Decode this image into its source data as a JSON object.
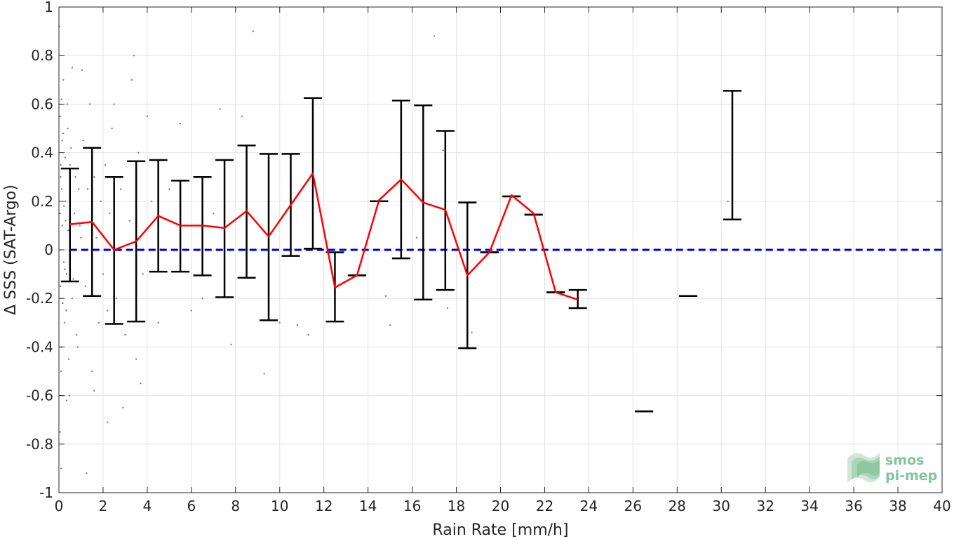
{
  "chart_data": {
    "type": "line",
    "xlabel": "Rain Rate [mm/h]",
    "ylabel": "Δ SSS (SAT-Argo)",
    "xlim": [
      0,
      40
    ],
    "ylim": [
      -1,
      1
    ],
    "xticks": [
      0,
      2,
      4,
      6,
      8,
      10,
      12,
      14,
      16,
      18,
      20,
      22,
      24,
      26,
      28,
      30,
      32,
      34,
      36,
      38,
      40
    ],
    "yticks": [
      -1,
      -0.8,
      -0.6,
      -0.4,
      -0.2,
      0,
      0.2,
      0.4,
      0.6,
      0.8,
      1
    ],
    "xtick_labels": [
      "0",
      "2",
      "4",
      "6",
      "8",
      "10",
      "12",
      "14",
      "16",
      "18",
      "20",
      "22",
      "24",
      "26",
      "28",
      "30",
      "32",
      "34",
      "36",
      "38",
      "40"
    ],
    "ytick_labels": [
      "-1",
      "-0.8",
      "-0.6",
      "-0.4",
      "-0.2",
      "0",
      "0.2",
      "0.4",
      "0.6",
      "0.8",
      "1"
    ],
    "grid": true,
    "reference_line": {
      "y": 0,
      "color": "#0000e0",
      "style": "dashed"
    },
    "mean_line": {
      "color": "#ff0000",
      "x": [
        0.5,
        1.5,
        2.5,
        3.5,
        4.5,
        5.5,
        6.5,
        7.5,
        8.5,
        9.5,
        10.5,
        11.5,
        12.5,
        13.5,
        14.5,
        15.5,
        16.5,
        17.5,
        18.5,
        19.5,
        20.5,
        21.5,
        22.5,
        23.5
      ],
      "y": [
        0.105,
        0.115,
        0.0,
        0.035,
        0.14,
        0.1,
        0.1,
        0.09,
        0.16,
        0.055,
        0.185,
        0.315,
        -0.155,
        -0.105,
        0.205,
        0.29,
        0.195,
        0.165,
        -0.105,
        -0.01,
        0.225,
        0.15,
        -0.175,
        -0.205
      ]
    },
    "error_bars": {
      "color": "#000000",
      "items": [
        {
          "x": 0.5,
          "low": -0.13,
          "high": 0.335
        },
        {
          "x": 1.5,
          "low": -0.19,
          "high": 0.42
        },
        {
          "x": 2.5,
          "low": -0.305,
          "high": 0.3
        },
        {
          "x": 3.5,
          "low": -0.295,
          "high": 0.365
        },
        {
          "x": 4.5,
          "low": -0.09,
          "high": 0.37
        },
        {
          "x": 5.5,
          "low": -0.09,
          "high": 0.285
        },
        {
          "x": 6.5,
          "low": -0.105,
          "high": 0.3
        },
        {
          "x": 7.5,
          "low": -0.195,
          "high": 0.37
        },
        {
          "x": 8.5,
          "low": -0.115,
          "high": 0.43
        },
        {
          "x": 9.5,
          "low": -0.29,
          "high": 0.395
        },
        {
          "x": 10.5,
          "low": -0.025,
          "high": 0.395
        },
        {
          "x": 11.5,
          "low": 0.005,
          "high": 0.625
        },
        {
          "x": 12.5,
          "low": -0.295,
          "high": -0.01
        },
        {
          "x": 13.5,
          "low": -0.105,
          "high": -0.105
        },
        {
          "x": 14.5,
          "low": 0.2,
          "high": 0.2
        },
        {
          "x": 15.5,
          "low": -0.035,
          "high": 0.615
        },
        {
          "x": 16.5,
          "low": -0.205,
          "high": 0.595
        },
        {
          "x": 17.5,
          "low": -0.165,
          "high": 0.49
        },
        {
          "x": 18.5,
          "low": -0.405,
          "high": 0.195
        },
        {
          "x": 19.5,
          "low": -0.01,
          "high": -0.01
        },
        {
          "x": 20.5,
          "low": 0.22,
          "high": 0.22
        },
        {
          "x": 21.5,
          "low": 0.145,
          "high": 0.145
        },
        {
          "x": 22.5,
          "low": -0.175,
          "high": -0.175
        },
        {
          "x": 23.5,
          "low": -0.24,
          "high": -0.165
        },
        {
          "x": 26.5,
          "low": -0.665,
          "high": -0.665
        },
        {
          "x": 28.5,
          "low": -0.19,
          "high": -0.19
        },
        {
          "x": 30.5,
          "low": 0.125,
          "high": 0.655
        }
      ]
    },
    "scatter": {
      "color": "#7f7f7f",
      "points": [
        [
          0.02,
          0.92
        ],
        [
          0.05,
          0.55
        ],
        [
          0.08,
          0.3
        ],
        [
          0.1,
          -0.9
        ],
        [
          0.12,
          0.62
        ],
        [
          0.05,
          -0.75
        ],
        [
          0.15,
          0.45
        ],
        [
          0.1,
          -0.5
        ],
        [
          0.2,
          0.7
        ],
        [
          0.25,
          -0.3
        ],
        [
          0.3,
          0.2
        ],
        [
          0.35,
          -0.1
        ],
        [
          0.4,
          0.5
        ],
        [
          0.45,
          -0.45
        ],
        [
          0.5,
          0.35
        ],
        [
          0.6,
          -0.2
        ],
        [
          0.7,
          0.15
        ],
        [
          0.8,
          -0.35
        ],
        [
          0.9,
          0.25
        ],
        [
          1.0,
          0.05
        ],
        [
          0.15,
          0.1
        ],
        [
          0.22,
          -0.05
        ],
        [
          0.28,
          0.38
        ],
        [
          0.33,
          -0.25
        ],
        [
          0.38,
          0.6
        ],
        [
          0.42,
          0.08
        ],
        [
          0.48,
          -0.6
        ],
        [
          0.55,
          0.42
        ],
        [
          0.65,
          -0.12
        ],
        [
          0.75,
          0.3
        ],
        [
          0.05,
          0.15
        ],
        [
          0.07,
          -0.15
        ],
        [
          0.09,
          0.35
        ],
        [
          0.11,
          -0.4
        ],
        [
          0.13,
          0.25
        ],
        [
          0.17,
          -0.22
        ],
        [
          0.19,
          0.48
        ],
        [
          0.23,
          0.18
        ],
        [
          0.27,
          -0.08
        ],
        [
          0.31,
          0.12
        ],
        [
          0.85,
          -0.4
        ],
        [
          0.95,
          0.1
        ],
        [
          1.1,
          0.45
        ],
        [
          1.2,
          -0.15
        ],
        [
          1.3,
          0.25
        ],
        [
          1.4,
          0.6
        ],
        [
          1.5,
          -0.5
        ],
        [
          1.6,
          0.3
        ],
        [
          1.7,
          0.05
        ],
        [
          1.8,
          -0.3
        ],
        [
          1.9,
          0.2
        ],
        [
          2.0,
          -0.1
        ],
        [
          2.1,
          0.35
        ],
        [
          2.2,
          -0.25
        ],
        [
          2.3,
          0.15
        ],
        [
          2.4,
          0.5
        ],
        [
          2.6,
          -0.2
        ],
        [
          2.8,
          0.25
        ],
        [
          3.0,
          -0.35
        ],
        [
          3.2,
          0.12
        ],
        [
          3.4,
          0.8
        ],
        [
          3.5,
          -0.45
        ],
        [
          3.6,
          0.4
        ],
        [
          3.8,
          -0.1
        ],
        [
          4.0,
          0.55
        ],
        [
          4.2,
          0.2
        ],
        [
          1.05,
          0.74
        ],
        [
          1.6,
          -0.58
        ],
        [
          2.2,
          -0.71
        ],
        [
          2.5,
          0.6
        ],
        [
          2.9,
          -0.65
        ],
        [
          3.3,
          0.7
        ],
        [
          3.7,
          -0.55
        ],
        [
          1.25,
          -0.92
        ],
        [
          0.6,
          0.75
        ],
        [
          0.35,
          -0.62
        ],
        [
          4.5,
          -0.3
        ],
        [
          5.0,
          0.25
        ],
        [
          5.5,
          0.52
        ],
        [
          6.0,
          -0.25
        ],
        [
          6.5,
          -0.2
        ],
        [
          7.0,
          0.15
        ],
        [
          7.3,
          0.58
        ],
        [
          7.8,
          -0.39
        ],
        [
          8.3,
          0.55
        ],
        [
          8.8,
          0.9
        ],
        [
          9.3,
          -0.51
        ],
        [
          10.0,
          -0.3
        ],
        [
          10.8,
          -0.31
        ],
        [
          11.3,
          -0.35
        ],
        [
          11.5,
          0.4
        ],
        [
          12.5,
          -0.16
        ],
        [
          14.8,
          -0.19
        ],
        [
          15.0,
          -0.31
        ],
        [
          16.2,
          0.05
        ],
        [
          17.0,
          0.88
        ],
        [
          17.4,
          0.41
        ],
        [
          17.6,
          -0.24
        ],
        [
          18.7,
          -0.34
        ],
        [
          30.3,
          0.2
        ]
      ]
    }
  },
  "logo": {
    "line1": "smos",
    "line2": "pi-mep"
  }
}
